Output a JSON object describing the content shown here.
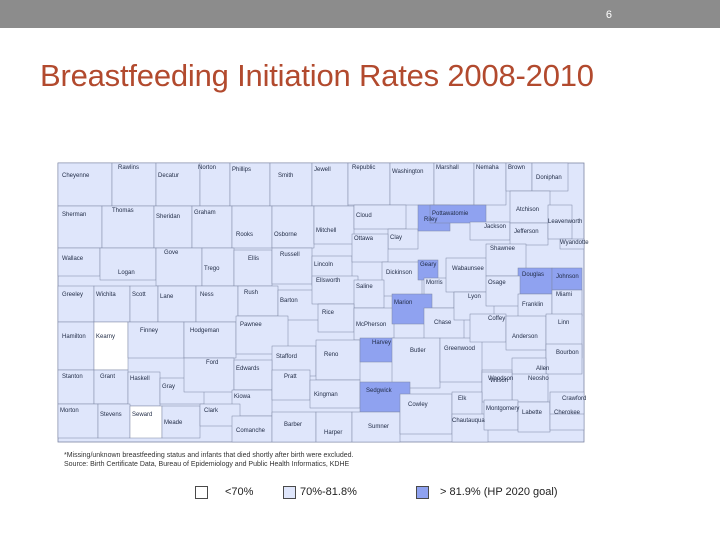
{
  "slide": {
    "number": "6",
    "title": "Breastfeeding Initiation Rates 2008-2010"
  },
  "colors": {
    "low": "#ffffff",
    "mid": "#dfe6fb",
    "high": "#8fa2f0",
    "border": "#7d86a4",
    "header": "#8c8c8c",
    "title": "#b24a2e"
  },
  "counties": [
    {
      "name": "Cheyenne",
      "rate": "mid"
    },
    {
      "name": "Rawlins",
      "rate": "mid"
    },
    {
      "name": "Decatur",
      "rate": "mid"
    },
    {
      "name": "Norton",
      "rate": "mid"
    },
    {
      "name": "Phillips",
      "rate": "mid"
    },
    {
      "name": "Smith",
      "rate": "mid"
    },
    {
      "name": "Jewell",
      "rate": "mid"
    },
    {
      "name": "Republic",
      "rate": "mid"
    },
    {
      "name": "Washington",
      "rate": "mid"
    },
    {
      "name": "Marshall",
      "rate": "mid"
    },
    {
      "name": "Nemaha",
      "rate": "mid"
    },
    {
      "name": "Brown",
      "rate": "mid"
    },
    {
      "name": "Doniphan",
      "rate": "mid"
    },
    {
      "name": "Sherman",
      "rate": "mid"
    },
    {
      "name": "Thomas",
      "rate": "mid"
    },
    {
      "name": "Sheridan",
      "rate": "mid"
    },
    {
      "name": "Graham",
      "rate": "mid"
    },
    {
      "name": "Rooks",
      "rate": "mid"
    },
    {
      "name": "Osborne",
      "rate": "mid"
    },
    {
      "name": "Mitchell",
      "rate": "mid"
    },
    {
      "name": "Cloud",
      "rate": "mid"
    },
    {
      "name": "Clay",
      "rate": "mid"
    },
    {
      "name": "Riley",
      "rate": "high"
    },
    {
      "name": "Pottawatomie",
      "rate": "high"
    },
    {
      "name": "Jackson",
      "rate": "mid"
    },
    {
      "name": "Atchison",
      "rate": "mid"
    },
    {
      "name": "Jefferson",
      "rate": "mid"
    },
    {
      "name": "Leavenworth",
      "rate": "mid"
    },
    {
      "name": "Wyandotte",
      "rate": "mid"
    },
    {
      "name": "Wallace",
      "rate": "mid"
    },
    {
      "name": "Logan",
      "rate": "mid"
    },
    {
      "name": "Gove",
      "rate": "mid"
    },
    {
      "name": "Trego",
      "rate": "mid"
    },
    {
      "name": "Ellis",
      "rate": "mid"
    },
    {
      "name": "Russell",
      "rate": "mid"
    },
    {
      "name": "Lincoln",
      "rate": "mid"
    },
    {
      "name": "Ottawa",
      "rate": "mid"
    },
    {
      "name": "Dickinson",
      "rate": "mid"
    },
    {
      "name": "Geary",
      "rate": "high"
    },
    {
      "name": "Morris",
      "rate": "mid"
    },
    {
      "name": "Wabaunsee",
      "rate": "mid"
    },
    {
      "name": "Shawnee",
      "rate": "mid"
    },
    {
      "name": "Douglas",
      "rate": "high"
    },
    {
      "name": "Johnson",
      "rate": "high"
    },
    {
      "name": "Greeley",
      "rate": "mid"
    },
    {
      "name": "Wichita",
      "rate": "mid"
    },
    {
      "name": "Scott",
      "rate": "mid"
    },
    {
      "name": "Lane",
      "rate": "mid"
    },
    {
      "name": "Ness",
      "rate": "mid"
    },
    {
      "name": "Rush",
      "rate": "mid"
    },
    {
      "name": "Barton",
      "rate": "mid"
    },
    {
      "name": "Ellsworth",
      "rate": "mid"
    },
    {
      "name": "Saline",
      "rate": "mid"
    },
    {
      "name": "Rice",
      "rate": "mid"
    },
    {
      "name": "McPherson",
      "rate": "mid"
    },
    {
      "name": "Marion",
      "rate": "high"
    },
    {
      "name": "Chase",
      "rate": "mid"
    },
    {
      "name": "Lyon",
      "rate": "mid"
    },
    {
      "name": "Osage",
      "rate": "mid"
    },
    {
      "name": "Franklin",
      "rate": "mid"
    },
    {
      "name": "Miami",
      "rate": "mid"
    },
    {
      "name": "Hamilton",
      "rate": "mid"
    },
    {
      "name": "Kearny",
      "rate": "low"
    },
    {
      "name": "Finney",
      "rate": "mid"
    },
    {
      "name": "Hodgeman",
      "rate": "mid"
    },
    {
      "name": "Pawnee",
      "rate": "mid"
    },
    {
      "name": "Stafford",
      "rate": "mid"
    },
    {
      "name": "Reno",
      "rate": "mid"
    },
    {
      "name": "Harvey",
      "rate": "high"
    },
    {
      "name": "Butler",
      "rate": "mid"
    },
    {
      "name": "Greenwood",
      "rate": "mid"
    },
    {
      "name": "Coffey",
      "rate": "mid"
    },
    {
      "name": "Anderson",
      "rate": "mid"
    },
    {
      "name": "Linn",
      "rate": "mid"
    },
    {
      "name": "Bourbon",
      "rate": "mid"
    },
    {
      "name": "Allen",
      "rate": "mid"
    },
    {
      "name": "Woodson",
      "rate": "mid"
    },
    {
      "name": "Neosho",
      "rate": "mid"
    },
    {
      "name": "Stanton",
      "rate": "mid"
    },
    {
      "name": "Grant",
      "rate": "mid"
    },
    {
      "name": "Haskell",
      "rate": "mid"
    },
    {
      "name": "Gray",
      "rate": "mid"
    },
    {
      "name": "Ford",
      "rate": "mid"
    },
    {
      "name": "Edwards",
      "rate": "mid"
    },
    {
      "name": "Kiowa",
      "rate": "mid"
    },
    {
      "name": "Pratt",
      "rate": "mid"
    },
    {
      "name": "Kingman",
      "rate": "mid"
    },
    {
      "name": "Sedgwick",
      "rate": "high"
    },
    {
      "name": "Wilson",
      "rate": "mid"
    },
    {
      "name": "Morton",
      "rate": "mid"
    },
    {
      "name": "Stevens",
      "rate": "mid"
    },
    {
      "name": "Seward",
      "rate": "low"
    },
    {
      "name": "Meade",
      "rate": "mid"
    },
    {
      "name": "Clark",
      "rate": "mid"
    },
    {
      "name": "Comanche",
      "rate": "mid"
    },
    {
      "name": "Barber",
      "rate": "mid"
    },
    {
      "name": "Harper",
      "rate": "mid"
    },
    {
      "name": "Sumner",
      "rate": "mid"
    },
    {
      "name": "Cowley",
      "rate": "mid"
    },
    {
      "name": "Elk",
      "rate": "mid"
    },
    {
      "name": "Chautauqua",
      "rate": "mid"
    },
    {
      "name": "Montgomery",
      "rate": "mid"
    },
    {
      "name": "Labette",
      "rate": "mid"
    },
    {
      "name": "Cherokee",
      "rate": "mid"
    },
    {
      "name": "Crawford",
      "rate": "mid"
    }
  ],
  "notes": [
    "*Missing/unknown breastfeeding status and infants that died shortly after birth were excluded.",
    "Source: Birth Certificate Data, Bureau of Epidemiology and Public Health Informatics, KDHE"
  ],
  "legend": [
    {
      "label": "<70%",
      "rate": "low"
    },
    {
      "label": "70%-81.8%",
      "rate": "mid"
    },
    {
      "label": "> 81.9% (HP 2020 goal)",
      "rate": "high"
    }
  ]
}
